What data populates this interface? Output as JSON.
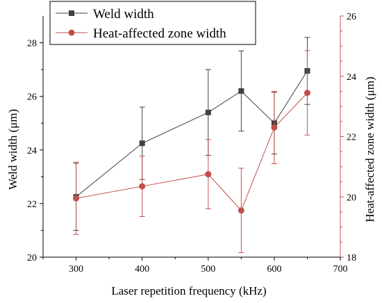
{
  "chart_data": {
    "type": "line",
    "xlabel": "Laser repetition frequency (kHz)",
    "ylabel": "Weld width (μm)",
    "y2label": "Heat-affected zone width (μm)",
    "xlim": [
      250,
      700
    ],
    "ylim": [
      20,
      29
    ],
    "y2lim": [
      18,
      26
    ],
    "xticks": [
      300,
      400,
      500,
      600,
      700
    ],
    "yticks": [
      20,
      22,
      24,
      26,
      28
    ],
    "y2ticks": [
      18,
      20,
      22,
      24,
      26
    ],
    "x": [
      300,
      400,
      500,
      550,
      600,
      650
    ],
    "series": [
      {
        "name": "Weld width",
        "axis": "left",
        "color": "#404040",
        "marker": "square",
        "values": [
          22.25,
          24.25,
          25.4,
          26.2,
          25.0,
          26.95
        ],
        "error": [
          1.25,
          1.35,
          1.6,
          1.5,
          1.15,
          1.25
        ]
      },
      {
        "name": "Heat-affected zone width",
        "axis": "right",
        "color": "#c0504d",
        "marker": "circle",
        "values": [
          19.95,
          20.35,
          20.75,
          19.55,
          22.3,
          23.45
        ],
        "error": [
          1.2,
          1.0,
          1.15,
          1.4,
          1.2,
          1.4
        ]
      }
    ],
    "legend_position": "top-left",
    "grid": false
  }
}
